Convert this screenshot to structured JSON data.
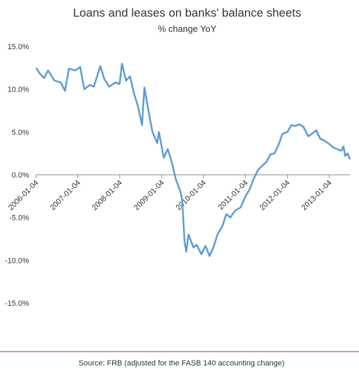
{
  "chart_data": {
    "type": "line",
    "title": "Loans and leases on banks' balance sheets",
    "subtitle": "% change YoY",
    "source": "Source: FRB (adjusted for the FASB 140 accounting change)",
    "x": [
      "2006-01-04",
      "2006-02-08",
      "2006-03-15",
      "2006-04-19",
      "2006-06-14",
      "2006-08-09",
      "2006-09-13",
      "2006-10-18",
      "2006-12-13",
      "2007-01-24",
      "2007-02-28",
      "2007-04-18",
      "2007-05-23",
      "2007-07-18",
      "2007-08-22",
      "2007-10-03",
      "2007-11-28",
      "2008-01-02",
      "2008-01-23",
      "2008-02-27",
      "2008-04-02",
      "2008-05-07",
      "2008-06-11",
      "2008-07-16",
      "2008-08-06",
      "2008-09-10",
      "2008-10-15",
      "2008-11-26",
      "2008-12-10",
      "2009-01-21",
      "2009-02-25",
      "2009-04-01",
      "2009-05-06",
      "2009-06-17",
      "2009-07-01",
      "2009-07-22",
      "2009-08-05",
      "2009-08-26",
      "2009-10-07",
      "2009-11-04",
      "2009-12-16",
      "2010-01-20",
      "2010-02-24",
      "2010-03-31",
      "2010-05-05",
      "2010-06-16",
      "2010-07-21",
      "2010-08-25",
      "2010-10-06",
      "2010-11-24",
      "2011-01-05",
      "2011-02-09",
      "2011-03-16",
      "2011-04-20",
      "2011-05-25",
      "2011-07-06",
      "2011-08-10",
      "2011-09-14",
      "2011-10-19",
      "2011-11-23",
      "2012-01-04",
      "2012-02-08",
      "2012-03-14",
      "2012-04-18",
      "2012-05-23",
      "2012-07-04",
      "2012-08-08",
      "2012-09-12",
      "2012-10-17",
      "2012-11-21",
      "2013-01-02",
      "2013-02-06",
      "2013-03-13",
      "2013-04-17",
      "2013-05-08",
      "2013-05-22",
      "2013-06-12",
      "2013-07-03"
    ],
    "series": [
      {
        "name": "Loans and leases",
        "color": "#5b9bd5",
        "values": [
          12.5,
          11.8,
          11.3,
          12.2,
          11.0,
          10.8,
          9.8,
          12.4,
          12.2,
          12.6,
          10.0,
          10.5,
          10.3,
          12.7,
          11.2,
          10.3,
          10.8,
          10.6,
          13.0,
          11.0,
          11.5,
          9.5,
          8.0,
          5.8,
          10.2,
          7.5,
          5.0,
          3.7,
          5.0,
          2.0,
          3.0,
          1.5,
          -0.5,
          -2.0,
          -3.0,
          -7.8,
          -9.0,
          -7.0,
          -8.5,
          -8.2,
          -9.3,
          -8.3,
          -9.5,
          -8.5,
          -7.0,
          -6.0,
          -4.6,
          -5.0,
          -4.2,
          -3.8,
          -2.5,
          -1.7,
          -0.5,
          0.5,
          1.0,
          1.5,
          2.4,
          2.5,
          3.5,
          4.8,
          5.0,
          5.8,
          5.7,
          5.9,
          5.6,
          4.5,
          4.8,
          5.2,
          4.2,
          4.0,
          3.6,
          3.2,
          3.0,
          2.8,
          3.3,
          2.2,
          2.5,
          1.8
        ]
      }
    ],
    "xlim": [
      "2006-01-04",
      "2013-07-03"
    ],
    "xticks": [
      "2006-01-04",
      "2007-01-04",
      "2008-01-04",
      "2009-01-04",
      "2010-01-04",
      "2011-01-04",
      "2012-01-04",
      "2013-01-04"
    ],
    "ylim": [
      -15,
      15
    ],
    "yticks": [
      {
        "value": -15,
        "label": "-15.0%"
      },
      {
        "value": -10,
        "label": "-10.0%"
      },
      {
        "value": -5,
        "label": "-5.0%"
      },
      {
        "value": 0,
        "label": "0.0%"
      },
      {
        "value": 5,
        "label": "5.0%"
      },
      {
        "value": 10,
        "label": "10.0%"
      },
      {
        "value": 15,
        "label": "15.0%"
      }
    ],
    "grid": false
  }
}
